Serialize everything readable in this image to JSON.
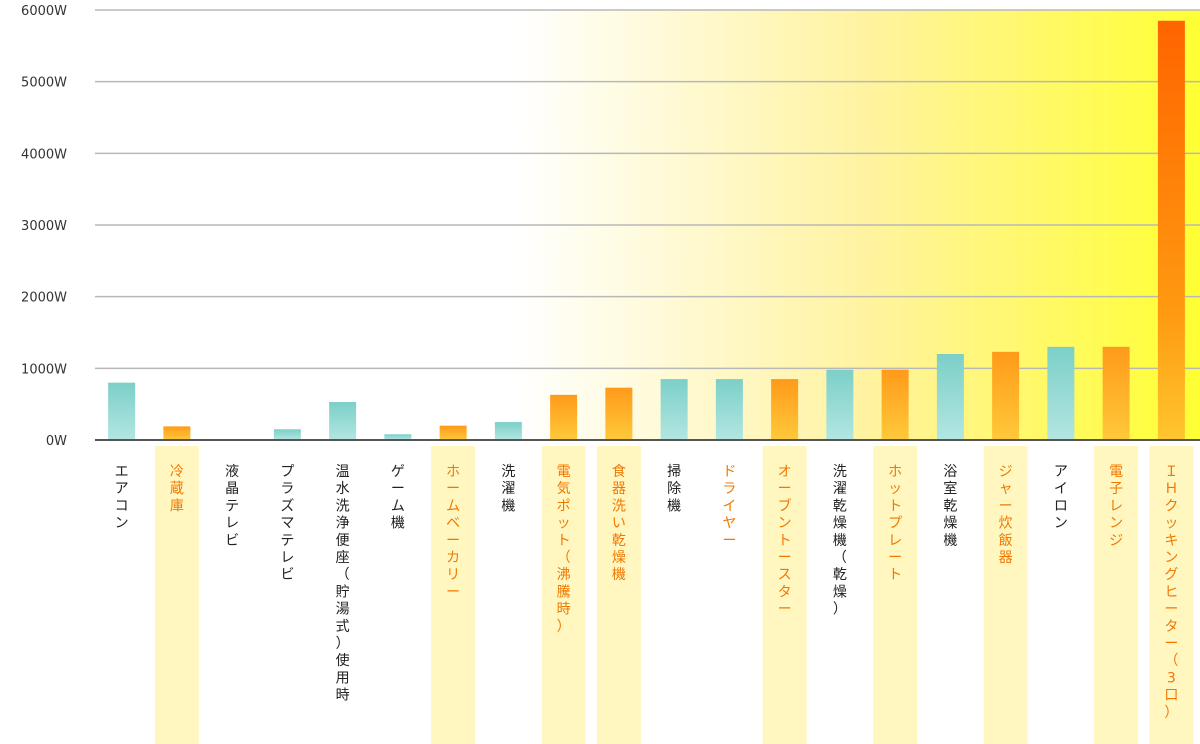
{
  "chart_data": {
    "type": "bar",
    "ylim": [
      0,
      6000
    ],
    "y_ticks": [
      "0W",
      "1000W",
      "2000W",
      "3000W",
      "4000W",
      "5000W",
      "6000W"
    ],
    "grid": true,
    "background": "gradient: white (left) to yellow (right)",
    "colors": {
      "blue": "#8dd6d0",
      "orange_light": "#ffc21a",
      "orange_dark": "#ff6a00",
      "orange_text": "#f07800",
      "label_highlight": "#fff6c0",
      "grid": "#b8b8b8",
      "axis": "#555555"
    },
    "categories": [
      {
        "label": "エアコン",
        "value": 800,
        "style": "blue"
      },
      {
        "label": "冷蔵庫",
        "value": 190,
        "style": "orange"
      },
      {
        "label": "液晶テレビ",
        "value": 0,
        "style": "blue"
      },
      {
        "label": "プラズマテレビ",
        "value": 150,
        "style": "blue"
      },
      {
        "label": "温水洗浄便座（貯湯式）使用時",
        "value": 530,
        "style": "blue"
      },
      {
        "label": "ゲーム機",
        "value": 80,
        "style": "blue"
      },
      {
        "label": "ホームベーカリー",
        "value": 200,
        "style": "orange"
      },
      {
        "label": "洗濯機",
        "value": 250,
        "style": "blue"
      },
      {
        "label": "電気ポット（沸騰時）",
        "value": 630,
        "style": "orange"
      },
      {
        "label": "食器洗い乾燥機",
        "value": 730,
        "style": "orange"
      },
      {
        "label": "掃除機",
        "value": 850,
        "style": "blue"
      },
      {
        "label": "ドライヤー",
        "value": 850,
        "style": "blue-orange-text"
      },
      {
        "label": "オーブントースター",
        "value": 850,
        "style": "orange"
      },
      {
        "label": "洗濯乾燥機（乾燥）",
        "value": 980,
        "style": "blue"
      },
      {
        "label": "ホットプレート",
        "value": 980,
        "style": "orange"
      },
      {
        "label": "浴室乾燥機",
        "value": 1200,
        "style": "blue"
      },
      {
        "label": "ジャー炊飯器",
        "value": 1230,
        "style": "orange"
      },
      {
        "label": "アイロン",
        "value": 1300,
        "style": "blue"
      },
      {
        "label": "電子レンジ",
        "value": 1300,
        "style": "orange"
      },
      {
        "label": "ＩＨクッキングヒーター（3口）",
        "value": 5850,
        "style": "orange"
      }
    ]
  }
}
